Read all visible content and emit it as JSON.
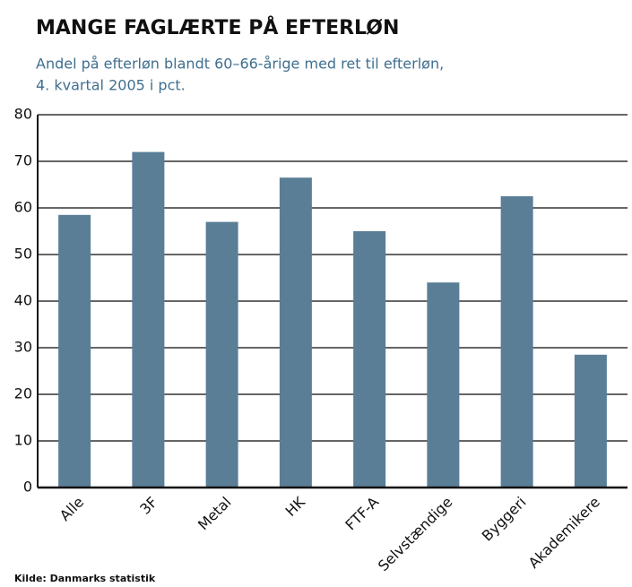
{
  "chart_data": {
    "type": "bar",
    "title": "MANGE FAGLÆRTE PÅ EFTERLØN",
    "subtitle": [
      "Andel på efterløn blandt 60–66-årige med ret til efterløn,",
      "4. kvartal 2005 i pct."
    ],
    "categories": [
      "Alle",
      "3F",
      "Metal",
      "HK",
      "FTF-A",
      "Selvstændige",
      "Byggeri",
      "Akademikere"
    ],
    "values": [
      58.5,
      72,
      57,
      66.5,
      55,
      44,
      62.5,
      28.5
    ],
    "color": "#5a7e96",
    "ylim": [
      0,
      80
    ],
    "yticks": [
      0,
      10,
      20,
      30,
      40,
      50,
      60,
      70,
      80
    ],
    "grid": true,
    "source": "Kilde: Danmarks statistik"
  }
}
